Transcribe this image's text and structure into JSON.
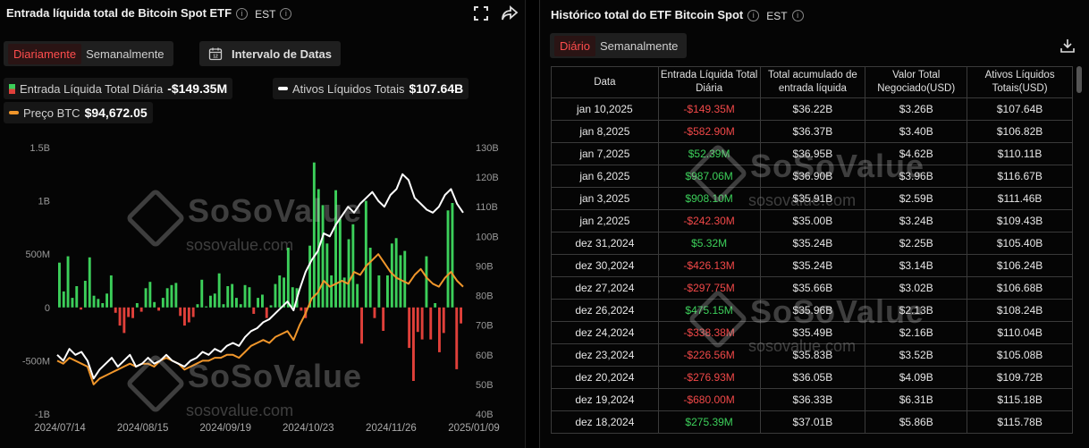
{
  "left": {
    "title": "Entrada líquida total de Bitcoin Spot ETF",
    "est": "EST",
    "toggle": {
      "daily": "Diariamente",
      "weekly": "Semanalmente"
    },
    "date_range": "Intervalo de Datas",
    "legend": {
      "inflow_label": "Entrada Líquida Total Diária",
      "inflow_value": "-$149.35M",
      "assets_label": "Ativos Líquidos Totais",
      "assets_value": "$107.64B",
      "price_label": "Preço BTC",
      "price_value": "$94,672.05"
    },
    "watermark": {
      "big": "SoSoValue",
      "small": "sosovalue.com"
    }
  },
  "right": {
    "title": "Histórico total do ETF Bitcoin Spot",
    "est": "EST",
    "toggle": {
      "daily": "Diário",
      "weekly": "Semanalmente"
    },
    "columns": [
      "Data",
      "Entrada Líquida Total Diária",
      "Total acumulado de entrada líquida",
      "Valor Total Negociado(USD)",
      "Ativos Líquidos Totais(USD)"
    ],
    "rows": [
      [
        "jan 10,2025",
        "-$149.35M",
        "$36.22B",
        "$3.26B",
        "$107.64B"
      ],
      [
        "jan 8,2025",
        "-$582.90M",
        "$36.37B",
        "$3.40B",
        "$106.82B"
      ],
      [
        "jan 7,2025",
        "$52.39M",
        "$36.95B",
        "$4.62B",
        "$110.11B"
      ],
      [
        "jan 6,2025",
        "$987.06M",
        "$36.90B",
        "$3.96B",
        "$116.67B"
      ],
      [
        "jan 3,2025",
        "$908.10M",
        "$35.91B",
        "$2.59B",
        "$111.46B"
      ],
      [
        "jan 2,2025",
        "-$242.30M",
        "$35.00B",
        "$3.24B",
        "$109.43B"
      ],
      [
        "dez 31,2024",
        "$5.32M",
        "$35.24B",
        "$2.25B",
        "$105.40B"
      ],
      [
        "dez 30,2024",
        "-$426.13M",
        "$35.24B",
        "$3.14B",
        "$106.24B"
      ],
      [
        "dez 27,2024",
        "-$297.75M",
        "$35.66B",
        "$3.02B",
        "$106.68B"
      ],
      [
        "dez 26,2024",
        "$475.15M",
        "$35.96B",
        "$2.13B",
        "$108.24B"
      ],
      [
        "dez 24,2024",
        "-$338.38M",
        "$35.49B",
        "$2.16B",
        "$110.04B"
      ],
      [
        "dez 23,2024",
        "-$226.56M",
        "$35.83B",
        "$3.52B",
        "$105.08B"
      ],
      [
        "dez 20,2024",
        "-$276.93M",
        "$36.05B",
        "$4.09B",
        "$109.72B"
      ],
      [
        "dez 19,2024",
        "-$680.00M",
        "$36.33B",
        "$6.31B",
        "$115.18B"
      ],
      [
        "dez 18,2024",
        "$275.39M",
        "$37.01B",
        "$5.86B",
        "$115.78B"
      ]
    ],
    "watermark": {
      "big": "SoSoValue",
      "small": "sosovalue.com"
    }
  },
  "colors": {
    "inflow_pos": "#3ccf5a",
    "inflow_neg": "#e0403a",
    "assets_line": "#ffffff",
    "price_line": "#f0962b",
    "accent": "#ff4d4d"
  },
  "chart_data": {
    "type": "bar",
    "left_axis": {
      "ticks": [
        "1.5B",
        "1B",
        "500M",
        "0",
        "-500M",
        "-1B"
      ],
      "range": [
        -1000,
        1500
      ],
      "unit": "M USD"
    },
    "right_axis": {
      "ticks": [
        "130B",
        "120B",
        "110B",
        "100B",
        "90B",
        "80B",
        "70B",
        "60B",
        "50B",
        "40B"
      ],
      "range": [
        40,
        130
      ],
      "unit": "B USD"
    },
    "x_ticks": [
      "2024/07/14",
      "2024/08/15",
      "2024/09/19",
      "2024/10/23",
      "2024/11/26",
      "2025/01/09"
    ],
    "bars": [
      {
        "y": 420
      },
      {
        "y": 150
      },
      {
        "y": 480
      },
      {
        "y": 90
      },
      {
        "y": 200
      },
      {
        "y": -20
      },
      {
        "y": 250
      },
      {
        "y": 470
      },
      {
        "y": 110
      },
      {
        "y": 80
      },
      {
        "y": 40
      },
      {
        "y": 130
      },
      {
        "y": 300
      },
      {
        "y": -50
      },
      {
        "y": -170
      },
      {
        "y": -240
      },
      {
        "y": -90
      },
      {
        "y": -100
      },
      {
        "y": 40
      },
      {
        "y": -40
      },
      {
        "y": 180
      },
      {
        "y": 240
      },
      {
        "y": 50
      },
      {
        "y": -30
      },
      {
        "y": 90
      },
      {
        "y": 180
      },
      {
        "y": 210
      },
      {
        "y": 230
      },
      {
        "y": -80
      },
      {
        "y": -170
      },
      {
        "y": -140
      },
      {
        "y": -90
      },
      {
        "y": 30
      },
      {
        "y": 260
      },
      {
        "y": 10
      },
      {
        "y": 110
      },
      {
        "y": 130
      },
      {
        "y": 320
      },
      {
        "y": 30
      },
      {
        "y": 200
      },
      {
        "y": 220
      },
      {
        "y": 90
      },
      {
        "y": 30
      },
      {
        "y": 210
      },
      {
        "y": 190
      },
      {
        "y": -60
      },
      {
        "y": 90
      },
      {
        "y": 120
      },
      {
        "y": -100
      },
      {
        "y": 20
      },
      {
        "y": 220
      },
      {
        "y": 300
      },
      {
        "y": 280
      },
      {
        "y": 560
      },
      {
        "y": 190
      },
      {
        "y": 180
      },
      {
        "y": -30
      },
      {
        "y": -100
      },
      {
        "y": 580
      },
      {
        "y": 1360
      },
      {
        "y": 1110
      },
      {
        "y": 960
      },
      {
        "y": 600
      },
      {
        "y": 300
      },
      {
        "y": 1100
      },
      {
        "y": 830
      },
      {
        "y": 280
      },
      {
        "y": 640
      },
      {
        "y": 780
      },
      {
        "y": 220
      },
      {
        "y": -340
      },
      {
        "y": 1000
      },
      {
        "y": 560
      },
      {
        "y": -100
      },
      {
        "y": 300
      },
      {
        "y": -220
      },
      {
        "y": 300
      },
      {
        "y": 600
      },
      {
        "y": 650
      },
      {
        "y": 490
      },
      {
        "y": 530
      },
      {
        "y": -380
      },
      {
        "y": -690
      },
      {
        "y": -230
      },
      {
        "y": -300
      },
      {
        "y": 480
      },
      {
        "y": -300
      },
      {
        "y": 40
      },
      {
        "y": -420
      },
      {
        "y": -240
      },
      {
        "y": 910
      },
      {
        "y": 980
      },
      {
        "y": -580
      },
      {
        "y": -150
      }
    ],
    "assets_line": [
      60,
      58,
      62,
      60,
      61,
      58,
      52,
      55,
      57,
      59,
      56,
      58,
      60,
      56,
      57,
      59,
      57,
      58,
      60,
      58,
      57,
      56,
      58,
      59,
      61,
      60,
      62,
      61,
      63,
      64,
      63,
      66,
      68,
      69,
      71,
      72,
      74,
      76,
      78,
      75,
      82,
      88,
      92,
      95,
      101,
      100,
      104,
      107,
      110,
      108,
      111,
      113,
      115,
      112,
      110,
      114,
      116,
      121,
      119,
      113,
      111,
      109,
      108,
      110,
      114,
      116,
      111,
      108
    ],
    "price_line": [
      58,
      57,
      59,
      58,
      57,
      56,
      50,
      52,
      53,
      54,
      55,
      56,
      57,
      56,
      57,
      57,
      56,
      58,
      59,
      58,
      57,
      55,
      56,
      57,
      58,
      58,
      59,
      59,
      60,
      60,
      59,
      61,
      63,
      64,
      65,
      64,
      66,
      67,
      68,
      65,
      70,
      74,
      79,
      81,
      85,
      83,
      84,
      85,
      84,
      88,
      87,
      90,
      92,
      94,
      91,
      88,
      86,
      85,
      84,
      87,
      89,
      86,
      84,
      83,
      86,
      88,
      85,
      83
    ]
  }
}
